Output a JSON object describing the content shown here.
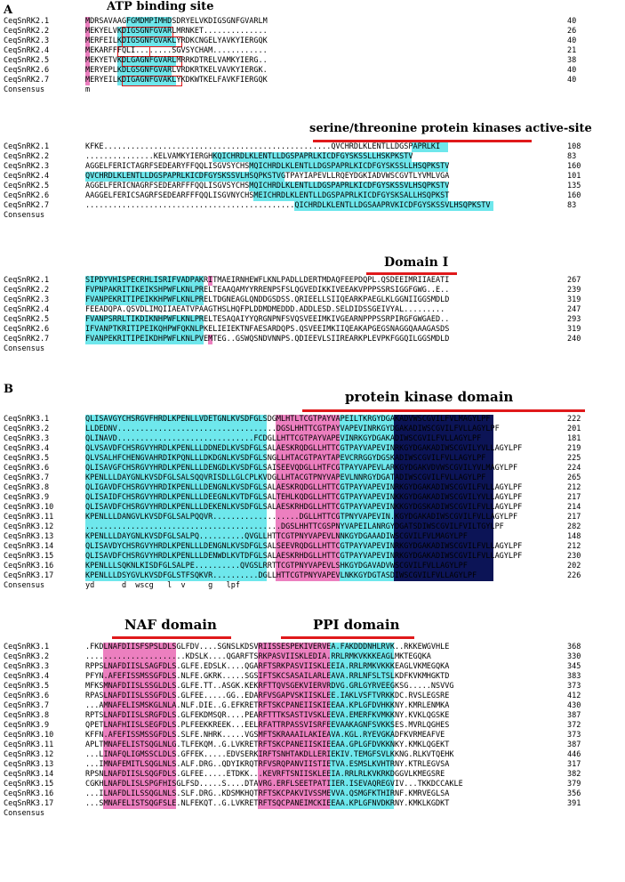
{
  "panel_a": {
    "letter": "A",
    "labels": {
      "atp": "ATP binding site",
      "active_site": "serine/threonine protein kinases active-site",
      "domain1": "Domain I"
    },
    "block1": {
      "rows": [
        {
          "name": "CeqSnRK2.1",
          "seq": "MDRSAVAAGFGMDMPIMHDSDRYELVKDIGSGNFGVARLM",
          "num": "40"
        },
        {
          "name": "CeqSnRK2.2",
          "seq": "MEKYELVKDIGSGNFGVARLMRNKET..............",
          "num": "26"
        },
        {
          "name": "CeqSnRK2.3",
          "seq": "MERFEILKDIGSGNFGVAKLYRDKCNGELYAVKYIERGQK",
          "num": "40"
        },
        {
          "name": "CeqSnRK2.4",
          "seq": "MEKARFFFQLI........SGVSYCHAM............",
          "num": "21"
        },
        {
          "name": "CeqSnRK2.5",
          "seq": "MEKYETVKDLGAGNFGVARLMRRKDTRELVAMKYIERG..",
          "num": "38"
        },
        {
          "name": "CeqSnRK2.6",
          "seq": "MERYEPLKDLGSGNFGVARLVRDKRTKELVAVKYIERGK.",
          "num": "40"
        },
        {
          "name": "CeqSnRK2.7",
          "seq": "MERYEILKDIGAGNFGVAKLYKDKWTKELFAVKFIERGQK",
          "num": "40"
        }
      ],
      "consensus_label": "Consensus",
      "consensus": "m"
    },
    "block2": {
      "rows": [
        {
          "name": "CeqSnRK2.1",
          "seq": "KFKE..................................................QVCHRDLKLENTLLDGSPAPRLKI",
          "num": "108"
        },
        {
          "name": "CeqSnRK2.2",
          "seq": "...............KELVAMKYIERGHKQICHRDLKLENTLLDGSPAPRLKICDFGYSKSSLLHSKPKSTV",
          "num": "83"
        },
        {
          "name": "CeqSnRK2.3",
          "seq": "AGGELFERICTAGRFSEDEARYFFQQLISGVSYCHSMQICHRDLKLENTLLDGSPAPRLKICDFGYSKSSLLHSQPKSTV",
          "num": "160"
        },
        {
          "name": "CeqSnRK2.4",
          "seq": "QVCHRDLKLENTLLDGSPAPRLKICDFGYSKSSVLHSQPKSTVGTPAYIAPEVLLRQEYDGKIADVWSCGVTLYVMLVGA",
          "num": "101"
        },
        {
          "name": "CeqSnRK2.5",
          "seq": "AGGELFERICNAGRFSEDEARFFFQQLISGVSYCHSMQICHRDLKLENTLLDGSPAPRLKICDFGYSKSSVLHSQPKSTV",
          "num": "135"
        },
        {
          "name": "CeqSnRK2.6",
          "seq": "AAGGELFERICSAGRFSEDEARFFFQQLISGVNYCHSMEICHRDLKLENTLLDGSPAPRLKICDFGYSKSALLHSQPKST",
          "num": "160"
        },
        {
          "name": "CeqSnRK2.7",
          "seq": "..............................................QICHRDLKLENTLLDGSAAPRVKICDFGYSKSSVLHSQPKSTV",
          "num": "83"
        }
      ],
      "consensus_label": "Consensus",
      "consensus": ""
    },
    "block3": {
      "rows": [
        {
          "name": "CeqSnRK2.1",
          "seq": "SIPDYVHISPECRHLISRIFVADPAKRITMAEIRNHEWFLKNLPADLLDERTMDAQFEEPDQPL.QSDEEIMRIIAEATI",
          "num": "267"
        },
        {
          "name": "CeqSnRK2.2",
          "seq": "FVPNPAKRITIKEIKSHPWFLKNLPRELTEAAQAMYYRRENPSFSLQGVEDIKKIVEEAKVPPPSSRSIGGFGWG..E..",
          "num": "239"
        },
        {
          "name": "CeqSnRK2.3",
          "seq": "FVANPEKRITIPEIKKHPWFLKNLPRELTDGNEAGLQNDDGSDSS.QRIEELLSIIQEARKPAEGLKLGGNIIGGSMDLD",
          "num": "319"
        },
        {
          "name": "CeqSnRK2.4",
          "seq": "FEEADQPA.QSVDLIMQIIAEATVPAAGTHSLHQFPLDDMDMEDDD.ADDLESD.SELDIDSSGEIVYAL.........",
          "num": "247"
        },
        {
          "name": "CeqSnRK2.5",
          "seq": "FVANPSRRLTIKDIKNHPWFLKNLPRELTESAQAIYYQRGNPNFSVQSVEEIMKIVGEARNPPPSSRPIRGFGWGAED..",
          "num": "293"
        },
        {
          "name": "CeqSnRK2.6",
          "seq": "IFVANPTKRITIPEIKQHPWFQKNLPKELIEIEKTNFAESARDQPS.QSVEEIMKIIQEAKAPGEGSNAGGQAAAGASDS",
          "num": "319"
        },
        {
          "name": "CeqSnRK2.7",
          "seq": "FVANPEKRITIPEIKDHPWFLKNLPVEMTEG..GSWQSNDVNNPS.QDIEEVLSIIREARKPLEVPKFGGQILGGSMDLD",
          "num": "240"
        }
      ],
      "consensus_label": "Consensus",
      "consensus": ""
    }
  },
  "panel_b": {
    "letter": "B",
    "labels": {
      "pkd": "protein kinase domain",
      "naf": "NAF domain",
      "ppi": "PPI domain"
    },
    "block1": {
      "rows": [
        {
          "name": "CeqSnRK3.1",
          "seq": "QLISAVGYCHSRGVFHRDLKPENLLVDETGNLKVSDFGLSDGMLHTLTCGTPAYVAPEILTKRGYDGAKADVWSCGVILFVLMAGYLPF",
          "num": "222"
        },
        {
          "name": "CeqSnRK3.2",
          "seq": "LLDEDNV...................................DGSLHHTTCGTPAYVAPEVINRKGYDGAKADIWSCGVILFVLLAGYLPF",
          "num": "201"
        },
        {
          "name": "CeqSnRK3.3",
          "seq": "QLINAVD..............................FCDGLLHTTCGTPAYVAPEVINRKGYDGAKADIWSCGVILFVLLAGYLPF",
          "num": "181"
        },
        {
          "name": "CeqSnRK3.4",
          "seq": "QLVSAVDFCHSRGVYHRDLKPENLLLDDNEDLKVSDFGLSALAESKRQDGLLHTTCGTPAYVAPEVINRKGYDGAKADIWSCGVILYVLLAGYLPF",
          "num": "219"
        },
        {
          "name": "CeqSnRK3.5",
          "seq": "QLVSALHFCHENGVAHRDIKPQNLLLDKDGNLKVSDFGLSNGLLHTACGTPAYTAPEVCRRGGYDGSKADIWSCGVILFVLLAGYLPF",
          "num": "225"
        },
        {
          "name": "CeqSnRK3.6",
          "seq": "QLISAVGFCHSRGVYHRDLKPENLLLDENGDLKVSDFGLSAISEEVQDGLLHTFCGTPAYVAPEVLARKGYDGAKVDVWSCGVILYVLMAGYLPF",
          "num": "224"
        },
        {
          "name": "CeqSnRK3.7",
          "seq": "KPENLLLDAYGNLKVSDFGLSALSQQVRISDLLGLCPLKVDGLLHTACGTPNYVAPEVLNNRGYDGATADIWSCGVILFVLLAGYLPF",
          "num": "265"
        },
        {
          "name": "CeqSnRK3.8",
          "seq": "QLIGAVDFCHSRGVYHRDIKPENLLLDENGNLKVSDFGLSALAESKRQDGLLHTTCGTPAYVAPEVINRKGYDGAKADIWSCGVILFVLLAGYLPF",
          "num": "212"
        },
        {
          "name": "CeqSnRK3.9",
          "seq": "QLISAIDFCHSRGVYHRDLKPENLLLDEEGNLKVTDFGLSALTEHLKQDGLLHTTCGTPAYVAPEVINKKGYDGAKADIWSCGVILYVLLAGYLPF",
          "num": "217"
        },
        {
          "name": "CeqSnRK3.10",
          "seq": "QLISAVDFCHSRGVYHRDLKPENLLLDEKENLKVSDFGLSALAESKRHDGLLHTTCGTPAYVAPEVINKKGYDGSKADIWSCGVILFVLLAGYLPF",
          "num": "214"
        },
        {
          "name": "CeqSnRK3.11",
          "seq": "KPENLLLDANGVLKVSDFGLSALPQQVR...................DGLLHTTCGTPNYVAPEVIN.KGYDGAKADIWSCGVILFVLLAGYLPF",
          "num": "217"
        },
        {
          "name": "CeqSnRK3.12",
          "seq": "...........................................DGSLHHTTCGSPNYVAPEILANRGYDGATSDIWSCGVILFVILTGYLPF",
          "num": "282"
        },
        {
          "name": "CeqSnRK3.13",
          "seq": "KPENLLLDAYGNLKVSDFGLSALPQ..........QVGLLHTTCGTPNYVAPEVLNNKGYDGAAADIWSCGVILFVLMAGYLPF",
          "num": "148"
        },
        {
          "name": "CeqSnRK3.14",
          "seq": "QLISAVDYCHSRGVYHRDLKPENLLLDENGNLKVSDFGLSALSEEVRQDGLLHTTCGTPAYVAPEVINRKGYDGAKADIWSCGVILFVLLAGYLPF",
          "num": "212"
        },
        {
          "name": "CeqSnRK3.15",
          "seq": "QLISAVDFCHSRGVYHRDLKPENLLLDENWDLKVTDFGLSALAESKRHDGLLHTTCGTPAYVAPEVINRKGYDGAKADIWSCGVILFVLLAGYLPF",
          "num": "230"
        },
        {
          "name": "CeqSnRK3.16",
          "seq": "KPENLLLSQKNLKISDFGLSALPE..........QVGSLRRTTCGTPNYVAPEVLSHKGYDGAVADVWSCGVILFVLLAGYLPF",
          "num": "202"
        },
        {
          "name": "CeqSnRK3.17",
          "seq": "KPENLLLDSYGVLKVSDFGLSTFSQKVR..........DGLLHTTCGTPNYVAPEVLNKKGYDGTASDIWSCGVILFVLLAGYLPF",
          "num": "226"
        }
      ],
      "consensus_label": "Consensus",
      "consensus": "yd      d  wscg   l  v     g   lpf"
    },
    "block2": {
      "rows": [
        {
          "name": "CeqSnRK3.1",
          "seq": ".FKDLNAFDIISFSPSLDLSGLFDV....SGNSLKDSVRIISSESPEKIVERVEA.FAKDDDNHLRVK..RKKEWGVHLE",
          "num": "368"
        },
        {
          "name": "CeqSnRK3.2",
          "seq": "......................KDSLK....QGARFTSRKPASVIISKLEDIA.RRLRMKVKKKEAGLMKTEGQKA",
          "num": "330"
        },
        {
          "name": "CeqSnRK3.3",
          "seq": "RPPSLNAFDIISLSAGFDLS.GLFE.EDSLK....QGARFTSRKPASVIISKLEEIA.RRLRMKVKKKEAGLVKMEGQKA",
          "num": "345"
        },
        {
          "name": "CeqSnRK3.4",
          "seq": "PFYN.AFEFISSMSSGFDLS.NLFE.GKRK.....SGSIFTSKCSASAILARLEAVA.RRLNFSLTSLKDFKVKMHGKTD",
          "num": "383"
        },
        {
          "name": "CeqSnRK3.5",
          "seq": "MFKSMNAFDIISLSSGLDLS.GLFE.TT..ASGK.KEKRFTTQVSGEKVIERVRDVG.GRLGYRVEEGKSG.....NSVVG",
          "num": "373"
        },
        {
          "name": "CeqSnRK3.6",
          "seq": "RPASLNAFDIISLSSGFDLS.GLFEE.....GG..EDARFVSGAPVSKIISKLEE.IAKLVSFTVRKKDC.RVSLEGSRE",
          "num": "412"
        },
        {
          "name": "CeqSnRK3.7",
          "seq": "...AMNAFELISMSKGLNLA.NLF.DIE..G.EFKRETRFTSKCPANEIISKIEEAA.KPLGFDVHKKNY.KMRLENMKA",
          "num": "430"
        },
        {
          "name": "CeqSnRK3.8",
          "seq": "RPTSLNAFDIISLSRGFDLS.GLFEKDMSQR....PEARFTTTKSASTIVSKLEEVA.EMERFKVMKKNY.KVKLQGSKE",
          "num": "387"
        },
        {
          "name": "CeqSnRK3.9",
          "seq": "QPETLNAFHIISLSEGFDLS.PLFEEKKREEK...EELRFATTRPASSVISRFEEVAAKAGNFSVKKSES.MVRLQGHES",
          "num": "372"
        },
        {
          "name": "CeqSnRK3.10",
          "seq": "KFFN.AFEFISSMSSGFDLS.SLFE.NHRK.....VGSMFTSKRAAAILAKIEAVA.KGL.RYEVGKADFKVRMEAFVE",
          "num": "373"
        },
        {
          "name": "CeqSnRK3.11",
          "seq": "APLTMNAFELISTSQGLNLG.TLFEKQM..G.LVKRETRFTSKCPANEIISKIEEAA.GPLGFDVKKNKY.KMKLQGEKT",
          "num": "387"
        },
        {
          "name": "CeqSnRK3.12",
          "seq": "...LINAFQLIGMSSCLDLS.GFFEK.....EDVSERKIRFTSNHTAKDLLERIEKIV.TEMGFSVLKKNG.RLKVTQEHK",
          "num": "446"
        },
        {
          "name": "CeqSnRK3.13",
          "seq": "...IMNAFEMITLSQGLNLS.ALF.DRG..QDYIKRQTRFVSRQPANVIISTIETVA.ESMSLKVHTRNY.KTRLEGVSA",
          "num": "317"
        },
        {
          "name": "CeqSnRK3.14",
          "seq": "RPSNLNAFDIISLSQGFDLS.GLFEE.....ETDKK...KEVRFTSNIISKLEEIA.RRLRLKVKRKDGGVLKMEGSRE",
          "num": "382"
        },
        {
          "name": "CeqSnRK3.15",
          "seq": "CGKHLNAFDLISLSPGFHISGLFSD.....S....DTAVRG.ERFLSEETPATIIER.ISEVAQREGVIV...TKKDCCAKLE",
          "num": "379"
        },
        {
          "name": "CeqSnRK3.16",
          "seq": "...ILNAFDLILSSQGLNLS.SLF.DRG..KDSMKHQTRFTSKCPAKVIVSSMEVVA.QSMGFKTHIRNF.KMRVEGLSA",
          "num": "356"
        },
        {
          "name": "CeqSnRK3.17",
          "seq": "...SMNAFELISTSQGFSLE.NLFEKQT..G.LVKRETRFTSQCPANEIMCKIEEAA.KPLGFNVDKRNY.KMKLKGDKT",
          "num": "391"
        }
      ],
      "consensus_label": "Consensus",
      "consensus": ""
    }
  }
}
